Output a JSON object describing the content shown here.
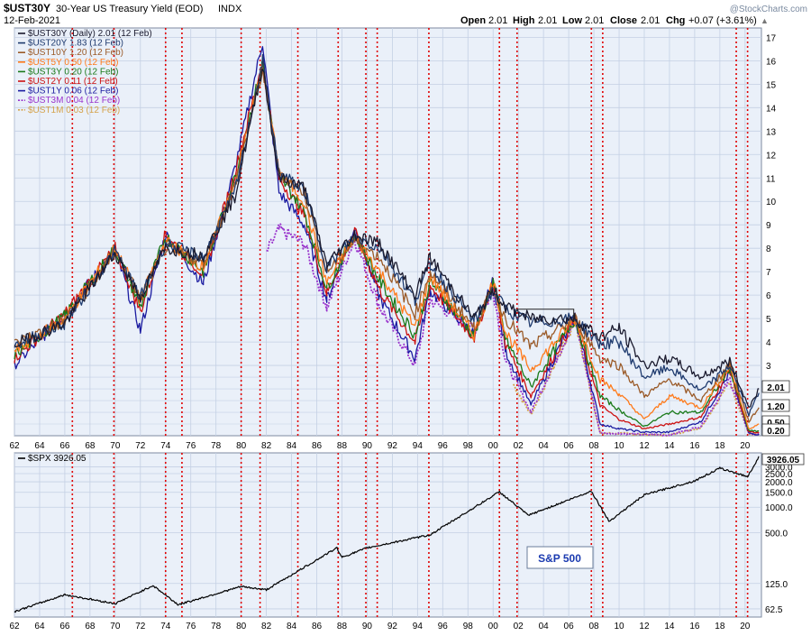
{
  "header": {
    "symbol": "$UST30Y",
    "description": "30-Year US Treasury Yield (EOD)",
    "exchange": "INDX",
    "date": "12-Feb-2021",
    "watermark": "@StockCharts.com",
    "quote": {
      "open_label": "Open",
      "open": "2.01",
      "high_label": "High",
      "high": "2.01",
      "low_label": "Low",
      "low": "2.01",
      "close_label": "Close",
      "close": "2.01",
      "chg_label": "Chg",
      "chg": "+0.07 (+3.61%)"
    }
  },
  "colors": {
    "panel_bg": "#eaf0f9",
    "grid": "#c4d0e4",
    "recession_line": "#e00000",
    "ust30y": "#1a1a2e",
    "ust20y": "#1e3a6e",
    "ust10y": "#9a5a28",
    "ust5y": "#ff7a1a",
    "ust3y": "#1a7a1a",
    "ust2y": "#cc1111",
    "ust1y": "#1a1aa0",
    "ust3m": "#9933cc",
    "ust1m": "#d4a24a",
    "spx": "#000000",
    "sp_box_text": "#1a3ab0"
  },
  "legend_top": [
    {
      "text": "$UST30Y (Daily) 2.01 (12 Feb)",
      "color": "#1a1a2e",
      "dashed": false
    },
    {
      "text": "$UST20Y 1.83 (12 Feb)",
      "color": "#1e3a6e",
      "dashed": false
    },
    {
      "text": "$UST10Y 1.20 (12 Feb)",
      "color": "#9a5a28",
      "dashed": false
    },
    {
      "text": "$UST5Y 0.50 (12 Feb)",
      "color": "#ff7a1a",
      "dashed": false
    },
    {
      "text": "$UST3Y 0.20 (12 Feb)",
      "color": "#1a7a1a",
      "dashed": false
    },
    {
      "text": "$UST2Y 0.11 (12 Feb)",
      "color": "#cc1111",
      "dashed": false
    },
    {
      "text": "$UST1Y 0.06 (12 Feb)",
      "color": "#1a1aa0",
      "dashed": false
    },
    {
      "text": "$UST3M 0.04 (12 Feb)",
      "color": "#9933cc",
      "dashed": true
    },
    {
      "text": "$UST1M 0.03 (12 Feb)",
      "color": "#d4a24a",
      "dashed": true
    }
  ],
  "legend_bottom": {
    "text": "$SPX 3926.05",
    "color": "#000000"
  },
  "sp_box_label": "S&P 500",
  "x_tick_labels": [
    "62",
    "64",
    "66",
    "68",
    "70",
    "72",
    "74",
    "76",
    "78",
    "80",
    "82",
    "84",
    "86",
    "88",
    "90",
    "92",
    "94",
    "96",
    "98",
    "00",
    "02",
    "04",
    "06",
    "08",
    "10",
    "12",
    "14",
    "16",
    "18",
    "20"
  ],
  "chart_data": [
    {
      "type": "line",
      "title": "30-Year US Treasury Yield (EOD)",
      "y_ticks": [
        3,
        4,
        5,
        6,
        7,
        8,
        9,
        10,
        11,
        12,
        13,
        14,
        15,
        16,
        17
      ],
      "ylim": [
        0,
        17.4
      ],
      "xlim": [
        1962,
        2021.3
      ],
      "recession_lines": [
        1966.6,
        1969.9,
        1974.0,
        1975.3,
        1980.0,
        1981.5,
        1984.5,
        1987.7,
        1989.9,
        1990.8,
        1994.9,
        2000.5,
        2001.9,
        2007.8,
        2008.7,
        2019.3,
        2020.2
      ],
      "value_tags": [
        {
          "label": "2.01",
          "value": 2.01
        },
        {
          "label": "1.20",
          "value": 1.2
        },
        {
          "label": "0.50",
          "value": 0.5
        },
        {
          "label": "0.20",
          "value": 0.2
        }
      ],
      "annotation": {
        "x1": 2001.8,
        "x2": 2006.4,
        "y": 5.4
      },
      "series": [
        {
          "name": "$UST30Y",
          "color_key": "ust30y",
          "x": [
            1962,
            1966,
            1970,
            1972,
            1974,
            1977,
            1979.5,
            1981.7,
            1983,
            1985,
            1986.8,
            1989,
            1991,
            1993.8,
            1995,
            1998.5,
            2000,
            2001,
            2003,
            2006.5,
            2008.5,
            2010,
            2012,
            2014,
            2016.5,
            2018.8,
            2020.3,
            2021.1
          ],
          "y": [
            3.9,
            4.8,
            7.8,
            5.9,
            8.0,
            7.7,
            10.2,
            15.8,
            11.0,
            10.6,
            7.3,
            8.6,
            8.2,
            6.0,
            7.6,
            5.0,
            6.2,
            5.5,
            5.0,
            5.0,
            4.2,
            4.6,
            3.0,
            3.3,
            2.5,
            3.2,
            1.2,
            2.01
          ]
        },
        {
          "name": "$UST20Y",
          "color_key": "ust20y",
          "x": [
            1962,
            1966,
            1970,
            1972,
            1974,
            1977,
            1979.5,
            1981.7,
            1983,
            1985,
            1986.8,
            1989,
            1991,
            1993.8,
            1995,
            1998.5,
            2000,
            2001,
            2003,
            2006.5,
            2008.5,
            2010,
            2012,
            2014,
            2016.5,
            2018.8,
            2020.3,
            2021.1
          ],
          "y": [
            3.85,
            4.8,
            7.9,
            5.9,
            8.2,
            7.6,
            10.4,
            16.0,
            11.2,
            10.5,
            7.2,
            8.5,
            8.0,
            5.8,
            7.3,
            4.9,
            6.2,
            5.4,
            4.8,
            5.0,
            3.9,
            4.0,
            2.5,
            2.9,
            1.9,
            3.0,
            0.9,
            1.83
          ]
        },
        {
          "name": "$UST10Y",
          "color_key": "ust10y",
          "x": [
            1962,
            1966,
            1970,
            1972,
            1974,
            1977,
            1979.5,
            1981.7,
            1983,
            1985,
            1986.8,
            1989,
            1991,
            1993.8,
            1995,
            1998.5,
            2000,
            2001,
            2003,
            2006.5,
            2008.5,
            2010,
            2012,
            2014,
            2016.5,
            2018.8,
            2020.3,
            2021.1
          ],
          "y": [
            3.9,
            4.9,
            7.8,
            5.9,
            8.0,
            7.4,
            10.7,
            15.6,
            11.2,
            10.4,
            7.0,
            8.3,
            7.6,
            5.2,
            7.0,
            4.6,
            6.3,
            5.0,
            3.8,
            5.0,
            3.3,
            3.0,
            1.7,
            2.4,
            1.5,
            3.1,
            0.6,
            1.2
          ]
        },
        {
          "name": "$UST5Y",
          "color_key": "ust5y",
          "x": [
            1962,
            1966,
            1970,
            1972,
            1974,
            1977,
            1979.5,
            1981.7,
            1983,
            1985,
            1986.8,
            1989,
            1991,
            1993.8,
            1995,
            1998.5,
            2000,
            2001,
            2003,
            2006.5,
            2008.5,
            2010,
            2012,
            2014,
            2016.5,
            2018.8,
            2020.3,
            2021.1
          ],
          "y": [
            3.6,
            5.0,
            8.0,
            5.8,
            8.3,
            7.2,
            10.8,
            15.8,
            11.3,
            10.0,
            6.5,
            8.5,
            7.0,
            4.6,
            6.8,
            4.3,
            6.6,
            4.4,
            2.8,
            5.0,
            2.4,
            1.8,
            0.7,
            1.7,
            1.2,
            3.0,
            0.3,
            0.5
          ]
        },
        {
          "name": "$UST3Y",
          "color_key": "ust3y",
          "x": [
            1962,
            1966,
            1970,
            1972,
            1974,
            1977,
            1979.5,
            1981.7,
            1983,
            1985,
            1986.8,
            1989,
            1991,
            1993.8,
            1995,
            1998.5,
            2000,
            2001,
            2003,
            2006.5,
            2008.5,
            2010,
            2012,
            2014,
            2016.5,
            2018.8,
            2020.3,
            2021.1
          ],
          "y": [
            3.45,
            5.1,
            8.0,
            5.5,
            8.5,
            7.0,
            11.0,
            15.9,
            11.1,
            9.6,
            6.3,
            8.6,
            6.6,
            4.3,
            6.6,
            4.3,
            6.6,
            4.1,
            2.1,
            5.0,
            1.7,
            1.1,
            0.4,
            1.0,
            1.0,
            2.9,
            0.2,
            0.2
          ]
        },
        {
          "name": "$UST2Y",
          "color_key": "ust2y",
          "x": [
            1962,
            1966,
            1970,
            1972,
            1974,
            1977,
            1979.5,
            1981.7,
            1983,
            1985,
            1986.8,
            1989,
            1991,
            1993.8,
            1995,
            1998.5,
            2000,
            2001,
            2003,
            2006.5,
            2008.5,
            2010,
            2012,
            2014,
            2016.5,
            2018.8,
            2020.3,
            2021.1
          ],
          "y": [
            3.3,
            5.2,
            8.0,
            5.3,
            8.6,
            6.9,
            11.2,
            16.0,
            11.0,
            9.4,
            6.1,
            8.7,
            6.2,
            4.0,
            6.4,
            4.2,
            6.6,
            3.9,
            1.7,
            5.0,
            1.3,
            0.7,
            0.3,
            0.5,
            0.8,
            2.8,
            0.15,
            0.11
          ]
        },
        {
          "name": "$UST1Y",
          "color_key": "ust1y",
          "x": [
            1962,
            1966,
            1970,
            1972,
            1974,
            1977,
            1979.5,
            1981.7,
            1983,
            1985,
            1986.8,
            1989,
            1991,
            1993.8,
            1995,
            1998.5,
            2000,
            2001,
            2003,
            2006.5,
            2008.5,
            2010,
            2012,
            2014,
            2016.5,
            2018.8,
            2020.3,
            2021.1
          ],
          "y": [
            3.0,
            5.2,
            7.9,
            4.5,
            8.6,
            6.5,
            11.4,
            16.8,
            10.4,
            9.0,
            5.8,
            8.9,
            5.9,
            3.3,
            6.2,
            4.3,
            6.6,
            3.6,
            1.3,
            5.1,
            0.5,
            0.3,
            0.15,
            0.15,
            0.6,
            2.7,
            0.1,
            0.06
          ]
        },
        {
          "name": "$UST3M",
          "color_key": "ust3m",
          "x": [
            1982,
            1983,
            1985,
            1986.8,
            1989,
            1991,
            1993.8,
            1995,
            1998.5,
            2000,
            2001,
            2003,
            2006.5,
            2008.5,
            2010,
            2012,
            2014,
            2016.5,
            2018.8,
            2020.3,
            2021.1
          ],
          "y": [
            7.8,
            8.8,
            8.2,
            5.5,
            8.4,
            5.5,
            3.0,
            5.8,
            4.5,
            6.2,
            3.2,
            1.0,
            5.0,
            0.1,
            0.1,
            0.05,
            0.03,
            0.4,
            2.4,
            0.1,
            0.04
          ]
        },
        {
          "name": "$UST1M",
          "color_key": "ust1m",
          "x": [
            2001.6,
            2003,
            2006.5,
            2008.5,
            2010,
            2012,
            2014,
            2016.5,
            2018.8,
            2020.3,
            2021.1
          ],
          "y": [
            2.2,
            0.9,
            4.9,
            0.1,
            0.1,
            0.05,
            0.03,
            0.35,
            2.3,
            0.08,
            0.03
          ]
        }
      ]
    },
    {
      "type": "line",
      "title": "$SPX",
      "y_scale": "log",
      "y_ticks": [
        62.5,
        125.0,
        500.0,
        1000.0,
        1500.0,
        2000.0,
        2500.0,
        3000.0
      ],
      "ylim": [
        50,
        4400
      ],
      "xlim": [
        1962,
        2021.3
      ],
      "last_value_label": "3926.05",
      "series": [
        {
          "name": "$SPX",
          "color_key": "spx",
          "x": [
            1962,
            1966,
            1970,
            1973,
            1975,
            1980,
            1982,
            1987.6,
            1988,
            1990,
            1995,
            2000.5,
            2002.8,
            2007.8,
            2009.2,
            2012,
            2016,
            2018,
            2020.2,
            2021.1
          ],
          "y": [
            58,
            92,
            72,
            118,
            70,
            115,
            105,
            330,
            255,
            330,
            470,
            1520,
            800,
            1550,
            680,
            1400,
            2050,
            2900,
            2300,
            3926.05
          ]
        }
      ]
    }
  ]
}
